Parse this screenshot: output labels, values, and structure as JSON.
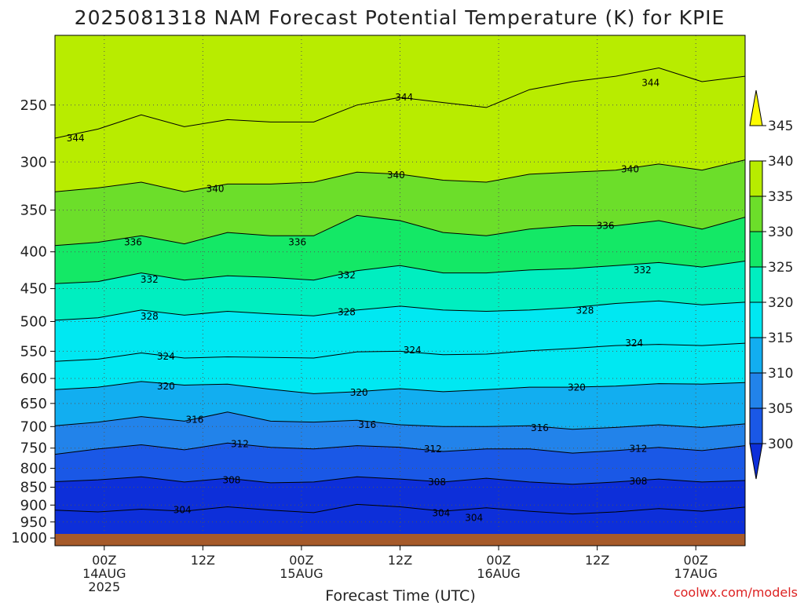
{
  "title": "2025081318 NAM Forecast Potential Temperature (K) for KPIE",
  "credit": "coolwx.com/models",
  "chart_data": {
    "type": "heatmap",
    "title": "2025081318 NAM Forecast Potential Temperature (K) for KPIE",
    "xlabel": "Forecast Time (UTC)",
    "ylabel": "",
    "y_scale": "log-pressure (hPa), inverted",
    "y_ticks": [
      250,
      300,
      350,
      400,
      450,
      500,
      550,
      600,
      650,
      700,
      750,
      800,
      850,
      900,
      950,
      1000
    ],
    "y_range_hPa": [
      1025,
      200
    ],
    "x_ticks": [
      {
        "hour": 6,
        "line1": "00Z",
        "line2": "14AUG",
        "line3": "2025"
      },
      {
        "hour": 18,
        "line1": "12Z",
        "line2": "",
        "line3": ""
      },
      {
        "hour": 30,
        "line1": "00Z",
        "line2": "15AUG",
        "line3": ""
      },
      {
        "hour": 42,
        "line1": "12Z",
        "line2": "",
        "line3": ""
      },
      {
        "hour": 54,
        "line1": "00Z",
        "line2": "16AUG",
        "line3": ""
      },
      {
        "hour": 66,
        "line1": "12Z",
        "line2": "",
        "line3": ""
      },
      {
        "hour": 78,
        "line1": "00Z",
        "line2": "17AUG",
        "line3": ""
      }
    ],
    "x_range_hours": [
      0,
      84
    ],
    "grid": true,
    "colorbar": {
      "levels": [
        300,
        305,
        310,
        315,
        320,
        325,
        330,
        335,
        340,
        345
      ],
      "colors": [
        "#0d2fd9",
        "#1a58e6",
        "#2283ea",
        "#12aef0",
        "#00e8f2",
        "#00eec0",
        "#14e866",
        "#6cde2a",
        "#b8ec00",
        "#fdfb00"
      ],
      "placement": "right"
    },
    "contour_lines": [
      {
        "theta": 304,
        "pressures": [
          915,
          920,
          912,
          918,
          905,
          915,
          922,
          898,
          905,
          918,
          908,
          918,
          926,
          920,
          910,
          918,
          906
        ]
      },
      {
        "theta": 308,
        "pressures": [
          835,
          830,
          822,
          836,
          826,
          838,
          836,
          822,
          828,
          836,
          826,
          836,
          842,
          836,
          828,
          836,
          832
        ]
      },
      {
        "theta": 312,
        "pressures": [
          765,
          752,
          742,
          754,
          738,
          748,
          752,
          744,
          748,
          758,
          752,
          752,
          762,
          756,
          748,
          756,
          744
        ]
      },
      {
        "theta": 316,
        "pressures": [
          698,
          690,
          678,
          688,
          668,
          688,
          690,
          686,
          696,
          700,
          700,
          698,
          706,
          702,
          696,
          702,
          694
        ]
      },
      {
        "theta": 320,
        "pressures": [
          622,
          617,
          606,
          613,
          611,
          621,
          630,
          626,
          620,
          626,
          622,
          617,
          617,
          615,
          610,
          611,
          608
        ]
      },
      {
        "theta": 324,
        "pressures": [
          568,
          564,
          553,
          562,
          560,
          561,
          562,
          551,
          550,
          556,
          555,
          549,
          545,
          540,
          538,
          540,
          536
        ]
      },
      {
        "theta": 328,
        "pressures": [
          498,
          494,
          482,
          490,
          484,
          488,
          491,
          482,
          476,
          482,
          484,
          482,
          478,
          472,
          468,
          474,
          470
        ]
      },
      {
        "theta": 332,
        "pressures": [
          443,
          440,
          428,
          438,
          432,
          434,
          438,
          425,
          418,
          428,
          428,
          424,
          422,
          418,
          414,
          420,
          412
        ]
      },
      {
        "theta": 336,
        "pressures": [
          392,
          388,
          380,
          390,
          376,
          380,
          380,
          356,
          362,
          376,
          380,
          372,
          368,
          368,
          362,
          372,
          358
        ]
      },
      {
        "theta": 340,
        "pressures": [
          330,
          326,
          320,
          330,
          322,
          322,
          320,
          310,
          312,
          318,
          320,
          312,
          310,
          308,
          302,
          308,
          298
        ]
      },
      {
        "theta": 344,
        "pressures": [
          278,
          270,
          258,
          268,
          262,
          264,
          264,
          250,
          244,
          248,
          252,
          238,
          232,
          228,
          222,
          232,
          228
        ]
      }
    ],
    "contour_labels": [
      {
        "text": "344",
        "hour": 2.5,
        "p": 278
      },
      {
        "text": "344",
        "hour": 42.5,
        "p": 244
      },
      {
        "text": "344",
        "hour": 72.5,
        "p": 233
      },
      {
        "text": "340",
        "hour": 19.5,
        "p": 327
      },
      {
        "text": "340",
        "hour": 41.5,
        "p": 313
      },
      {
        "text": "340",
        "hour": 70,
        "p": 307
      },
      {
        "text": "336",
        "hour": 9.5,
        "p": 388
      },
      {
        "text": "336",
        "hour": 29.5,
        "p": 388
      },
      {
        "text": "336",
        "hour": 67,
        "p": 368
      },
      {
        "text": "332",
        "hour": 11.5,
        "p": 437
      },
      {
        "text": "332",
        "hour": 35.5,
        "p": 431
      },
      {
        "text": "332",
        "hour": 71.5,
        "p": 424
      },
      {
        "text": "328",
        "hour": 11.5,
        "p": 492
      },
      {
        "text": "328",
        "hour": 35.5,
        "p": 485
      },
      {
        "text": "328",
        "hour": 64.5,
        "p": 483
      },
      {
        "text": "324",
        "hour": 13.5,
        "p": 559
      },
      {
        "text": "324",
        "hour": 43.5,
        "p": 548
      },
      {
        "text": "324",
        "hour": 70.5,
        "p": 536
      },
      {
        "text": "320",
        "hour": 13.5,
        "p": 615
      },
      {
        "text": "320",
        "hour": 37,
        "p": 628
      },
      {
        "text": "320",
        "hour": 63.5,
        "p": 618
      },
      {
        "text": "316",
        "hour": 17,
        "p": 685
      },
      {
        "text": "316",
        "hour": 38,
        "p": 696
      },
      {
        "text": "316",
        "hour": 59,
        "p": 703
      },
      {
        "text": "312",
        "hour": 22.5,
        "p": 740
      },
      {
        "text": "312",
        "hour": 46,
        "p": 752
      },
      {
        "text": "312",
        "hour": 71,
        "p": 751
      },
      {
        "text": "308",
        "hour": 21.5,
        "p": 831
      },
      {
        "text": "308",
        "hour": 46.5,
        "p": 836
      },
      {
        "text": "308",
        "hour": 71,
        "p": 834
      },
      {
        "text": "304",
        "hour": 15.5,
        "p": 914
      },
      {
        "text": "304",
        "hour": 47,
        "p": 923
      },
      {
        "text": "304",
        "hour": 51,
        "p": 938
      }
    ]
  }
}
